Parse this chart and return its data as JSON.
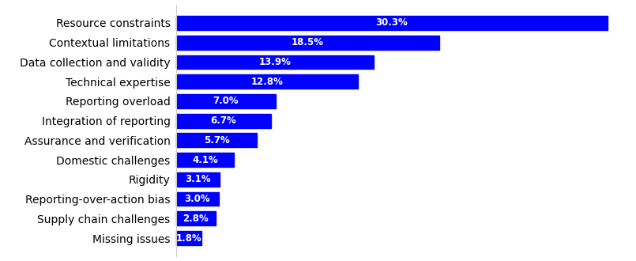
{
  "categories": [
    "Missing issues",
    "Supply chain challenges",
    "Reporting-over-action bias",
    "Rigidity",
    "Domestic challenges",
    "Assurance and verification",
    "Integration of reporting",
    "Reporting overload",
    "Technical expertise",
    "Data collection and validity",
    "Contextual limitations",
    "Resource constraints"
  ],
  "values": [
    1.8,
    2.8,
    3.0,
    3.1,
    4.1,
    5.7,
    6.7,
    7.0,
    12.8,
    13.9,
    18.5,
    30.3
  ],
  "bar_color": "#0000FF",
  "label_color": "#FFFFFF",
  "label_fontsize": 8.5,
  "category_fontsize": 9.5,
  "bar_height": 0.72,
  "xlim_min": -8,
  "xlim_max": 32,
  "figure_width": 8.05,
  "figure_height": 3.3,
  "dpi": 100,
  "bg_color": "#FFFFFF"
}
